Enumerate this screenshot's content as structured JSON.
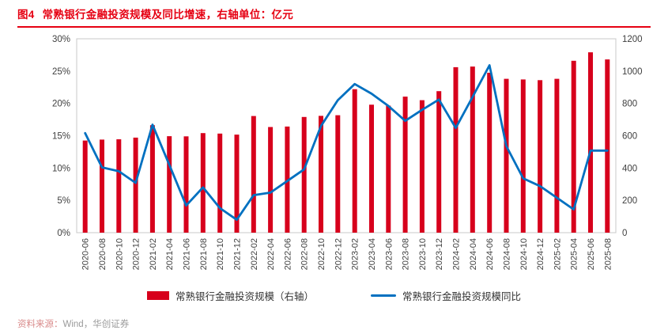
{
  "figure": {
    "title_prefix": "图4",
    "title": "常熟银行金融投资规模及同比增速，右轴单位：亿元",
    "source_label": "资料来源：",
    "source_note": "Wind，华创证券"
  },
  "legend": {
    "bar_label": "常熟银行金融投资规模（右轴）",
    "line_label": "常熟银行金融投资规模同比"
  },
  "colors": {
    "accent_red": "#e60012",
    "bar_red": "#d7001c",
    "line_blue": "#0070c0",
    "plot_border": "#c8c8c8"
  },
  "chart_data": {
    "type": "bar",
    "subtype": "combo-bar-line-dual-axis",
    "title": "常熟银行金融投资规模及同比增速",
    "right_axis_unit": "亿元",
    "categories": [
      "2020-06",
      "2020-08",
      "2020-10",
      "2020-12",
      "2021-02",
      "2021-04",
      "2021-06",
      "2021-08",
      "2021-10",
      "2021-12",
      "2022-02",
      "2022-04",
      "2022-06",
      "2022-08",
      "2022-10",
      "2022-12",
      "2023-02",
      "2023-04",
      "2023-06",
      "2023-08",
      "2023-10",
      "2023-12",
      "2024-02",
      "2024-04",
      "2024-06",
      "2024-08",
      "2024-10",
      "2024-12",
      "2025-02",
      "2025-04",
      "2025-06",
      "2025-08"
    ],
    "series": [
      {
        "name": "常熟银行金融投资规模（右轴）",
        "type": "bar",
        "axis": "right",
        "color": "#d7001c",
        "values": [
          570,
          576,
          578,
          588,
          665,
          597,
          596,
          616,
          613,
          607,
          722,
          654,
          657,
          716,
          723,
          727,
          888,
          792,
          786,
          842,
          820,
          876,
          1024,
          1028,
          990,
          952,
          948,
          944,
          952,
          1064,
          1116,
          1072
        ]
      },
      {
        "name": "常熟银行金融投资规模同比",
        "type": "line",
        "axis": "left",
        "color": "#0070c0",
        "values": [
          15.4,
          10.1,
          9.5,
          7.7,
          16.7,
          10.5,
          4.2,
          7.0,
          3.8,
          2.0,
          5.8,
          6.2,
          8.0,
          9.8,
          16.5,
          20.5,
          23.0,
          21.5,
          19.6,
          17.3,
          19.0,
          20.6,
          16.2,
          21.0,
          25.9,
          13.4,
          8.4,
          7.2,
          5.4,
          3.6,
          12.7,
          12.7
        ]
      }
    ],
    "left_axis": {
      "min": 0,
      "max": 30,
      "step": 5,
      "format": "percent",
      "ticks": [
        "0%",
        "5%",
        "10%",
        "15%",
        "20%",
        "25%",
        "30%"
      ]
    },
    "right_axis": {
      "min": 0,
      "max": 1200,
      "step": 200,
      "ticks": [
        "0",
        "200",
        "400",
        "600",
        "800",
        "1000",
        "1200"
      ]
    },
    "grid": false,
    "legend_position": "bottom"
  }
}
